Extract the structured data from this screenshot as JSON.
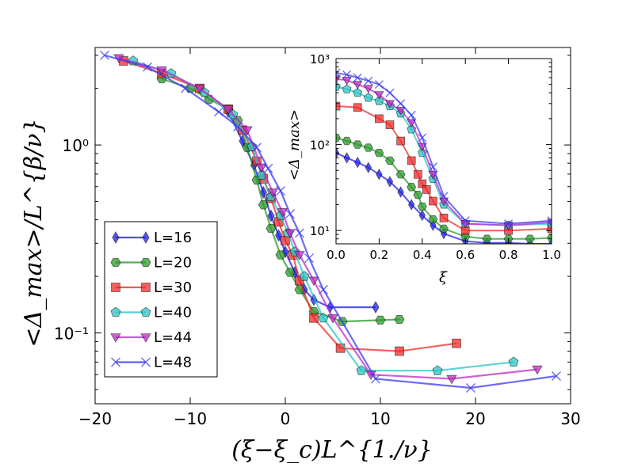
{
  "chart_data": [
    {
      "type": "line",
      "role": "main",
      "title": "",
      "xlabel": "(ξ−ξ_c)L^{1./ν}",
      "ylabel": "<Δ_max>/L^{β/ν}",
      "xlim": [
        -20,
        30
      ],
      "ylim": [
        0.042,
        3.3
      ],
      "yscale": "log",
      "xticks": [
        -20,
        -10,
        0,
        10,
        20,
        30
      ],
      "xtick_labels": [
        "−20",
        "−10",
        "0",
        "10",
        "20",
        "30"
      ],
      "yticks": [
        0.1,
        1.0
      ],
      "ytick_labels": [
        "10⁻¹",
        "10⁰"
      ],
      "legend_position": "lower-left",
      "series": [
        {
          "name": "L=16",
          "color": "#1f1ff0",
          "marker": "diamond",
          "x": [
            -6.0,
            -4.5,
            -3.3,
            -2.3,
            -1.5,
            -0.7,
            0.0,
            1.0,
            2.0,
            3.0,
            4.7,
            9.5
          ],
          "y": [
            1.5,
            1.05,
            0.78,
            0.56,
            0.42,
            0.33,
            0.27,
            0.21,
            0.17,
            0.15,
            0.137,
            0.137
          ]
        },
        {
          "name": "L=20",
          "color": "#2a9a2a",
          "marker": "hexagon",
          "x": [
            -13.0,
            -10.0,
            -8.0,
            -6.0,
            -5.0,
            -4.0,
            -3.0,
            -2.3,
            -1.5,
            -0.5,
            0.5,
            1.5,
            3.0,
            6.0,
            10.0,
            12.0
          ],
          "y": [
            2.25,
            2.0,
            1.75,
            1.55,
            1.35,
            0.97,
            0.65,
            0.48,
            0.36,
            0.26,
            0.21,
            0.17,
            0.13,
            0.115,
            0.117,
            0.118
          ]
        },
        {
          "name": "L=30",
          "color": "#f02a2a",
          "marker": "square",
          "x": [
            -17.0,
            -13.0,
            -9.0,
            -6.0,
            -4.5,
            -3.0,
            -2.3,
            -1.5,
            -0.7,
            0.0,
            0.8,
            1.5,
            3.0,
            5.8,
            12.0,
            18.0
          ],
          "y": [
            2.8,
            2.4,
            2.0,
            1.55,
            1.2,
            0.82,
            0.66,
            0.52,
            0.39,
            0.31,
            0.26,
            0.19,
            0.12,
            0.083,
            0.08,
            0.088
          ]
        },
        {
          "name": "L=40",
          "color": "#2ac4c4",
          "marker": "pentagon",
          "x": [
            -16.0,
            -12.0,
            -8.5,
            -5.5,
            -3.5,
            -2.5,
            -1.5,
            -0.5,
            0.3,
            1.0,
            2.0,
            4.0,
            8.0,
            16.0,
            24.0
          ],
          "y": [
            2.8,
            2.4,
            1.9,
            1.45,
            0.98,
            0.69,
            0.53,
            0.42,
            0.34,
            0.27,
            0.2,
            0.12,
            0.063,
            0.063,
            0.07
          ]
        },
        {
          "name": "L=44",
          "color": "#c02ac8",
          "marker": "triangle-down",
          "x": [
            -17.5,
            -13.0,
            -9.0,
            -6.0,
            -4.0,
            -2.5,
            -1.3,
            -0.3,
            0.5,
            1.5,
            3.0,
            5.0,
            9.0,
            17.5,
            26.5
          ],
          "y": [
            2.9,
            2.5,
            2.0,
            1.55,
            1.2,
            0.76,
            0.56,
            0.44,
            0.34,
            0.26,
            0.19,
            0.12,
            0.06,
            0.057,
            0.064
          ]
        },
        {
          "name": "L=48",
          "color": "#3a3af0",
          "marker": "x",
          "x": [
            -19.0,
            -14.5,
            -10.5,
            -7.0,
            -5.0,
            -3.0,
            -1.8,
            -0.5,
            0.5,
            1.5,
            2.5,
            4.0,
            9.5,
            19.5,
            28.5
          ],
          "y": [
            3.0,
            2.6,
            2.0,
            1.5,
            1.25,
            0.97,
            0.75,
            0.57,
            0.43,
            0.34,
            0.25,
            0.17,
            0.057,
            0.051,
            0.059
          ]
        }
      ]
    },
    {
      "type": "line",
      "role": "inset",
      "title": "",
      "xlabel": "ξ",
      "ylabel": "<Δ_max>",
      "xlim": [
        0.0,
        1.0
      ],
      "ylim": [
        7,
        1000
      ],
      "yscale": "log",
      "xticks": [
        0.0,
        0.2,
        0.4,
        0.6,
        0.8,
        1.0
      ],
      "xtick_labels": [
        "0.0",
        "0.2",
        "0.4",
        "0.6",
        "0.8",
        "1.0"
      ],
      "yticks": [
        10,
        100,
        1000
      ],
      "ytick_labels": [
        "10¹",
        "10²",
        "10³"
      ],
      "series": [
        {
          "name": "L=16",
          "color": "#1f1ff0",
          "marker": "diamond",
          "x": [
            0.0,
            0.05,
            0.1,
            0.15,
            0.2,
            0.25,
            0.3,
            0.35,
            0.4,
            0.45,
            0.5,
            0.6,
            0.7,
            0.8,
            0.9,
            1.0
          ],
          "y": [
            80,
            70,
            62,
            54,
            45,
            37,
            28,
            20,
            15,
            11.5,
            9.2,
            7.5,
            7.2,
            7.2,
            7.0,
            7.0
          ]
        },
        {
          "name": "L=20",
          "color": "#2a9a2a",
          "marker": "hexagon",
          "x": [
            0.0,
            0.05,
            0.1,
            0.15,
            0.2,
            0.25,
            0.3,
            0.35,
            0.38,
            0.4,
            0.45,
            0.5,
            0.6,
            0.7,
            0.8,
            0.9,
            1.0
          ],
          "y": [
            120,
            110,
            100,
            92,
            80,
            65,
            45,
            32,
            26,
            19,
            13.5,
            10.5,
            8.5,
            8.0,
            8.0,
            8.0,
            8.2
          ]
        },
        {
          "name": "L=30",
          "color": "#f02a2a",
          "marker": "square",
          "x": [
            0.0,
            0.1,
            0.2,
            0.25,
            0.3,
            0.35,
            0.38,
            0.4,
            0.42,
            0.45,
            0.5,
            0.6,
            0.8,
            1.0
          ],
          "y": [
            280,
            270,
            200,
            170,
            110,
            65,
            45,
            35,
            30,
            22,
            14,
            10,
            10,
            10.5
          ]
        },
        {
          "name": "L=40",
          "color": "#2ac4c4",
          "marker": "pentagon",
          "x": [
            0.0,
            0.05,
            0.1,
            0.15,
            0.2,
            0.25,
            0.3,
            0.35,
            0.4,
            0.45,
            0.5,
            0.6,
            0.8,
            1.0
          ],
          "y": [
            470,
            440,
            400,
            350,
            320,
            280,
            230,
            150,
            80,
            40,
            20,
            12,
            11.5,
            12
          ]
        },
        {
          "name": "L=44",
          "color": "#c02ac8",
          "marker": "triangle-down",
          "x": [
            0.0,
            0.05,
            0.1,
            0.15,
            0.2,
            0.25,
            0.3,
            0.35,
            0.4,
            0.45,
            0.5,
            0.6,
            0.8,
            1.0
          ],
          "y": [
            580,
            560,
            500,
            450,
            380,
            300,
            250,
            180,
            95,
            45,
            22,
            12,
            11.5,
            12.5
          ]
        },
        {
          "name": "L=48",
          "color": "#3a3af0",
          "marker": "x",
          "x": [
            0.0,
            0.05,
            0.1,
            0.15,
            0.2,
            0.25,
            0.3,
            0.35,
            0.4,
            0.45,
            0.5,
            0.6,
            0.8,
            1.0
          ],
          "y": [
            680,
            650,
            600,
            550,
            500,
            400,
            300,
            220,
            120,
            55,
            25,
            13,
            12,
            13
          ]
        }
      ]
    }
  ]
}
